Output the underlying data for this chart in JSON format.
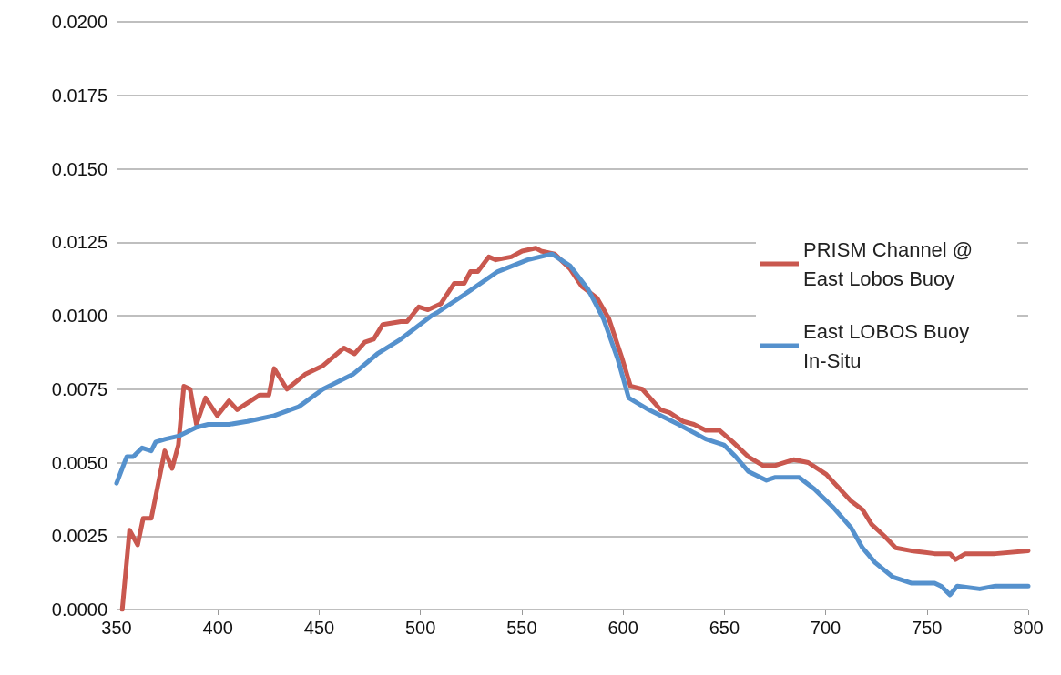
{
  "chart_data": {
    "type": "line",
    "xlim": [
      350,
      800
    ],
    "xticks": [
      350,
      400,
      450,
      500,
      550,
      600,
      650,
      700,
      750,
      800
    ],
    "ylim": [
      0,
      0.02
    ],
    "yticks": [
      {
        "value": 0,
        "label": "0.0000"
      },
      {
        "value": 0.0025,
        "label": "0.0025"
      },
      {
        "value": 0.005,
        "label": "0.0050"
      },
      {
        "value": 0.0075,
        "label": "0.0075"
      },
      {
        "value": 0.01,
        "label": "0.0100"
      },
      {
        "value": 0.0125,
        "label": "0.0125"
      },
      {
        "value": 0.015,
        "label": "0.0150"
      },
      {
        "value": 0.0175,
        "label": "0.0175"
      },
      {
        "value": 0.02,
        "label": "0.0200"
      }
    ],
    "grid": "y",
    "legend": "right",
    "marker": "none",
    "line_style": "solid",
    "series": [
      {
        "name": "PRISM Channel @ East Lobos Buoy",
        "color": "#c9584f",
        "x": [
          352.8,
          356.4,
          360.4,
          363.1,
          367.1,
          373.8,
          377.4,
          380.5,
          383.2,
          386.3,
          389.4,
          393.9,
          399.7,
          405.5,
          409.5,
          420.7,
          425.2,
          427.8,
          434.1,
          443,
          451.9,
          462.2,
          467.5,
          472.5,
          476.9,
          481.4,
          490.3,
          493.4,
          499.2,
          503.7,
          510,
          516.7,
          521.6,
          524.7,
          528.3,
          533.7,
          537.2,
          544.8,
          550.2,
          556.9,
          559.5,
          566.2,
          573.8,
          579.6,
          587.2,
          593,
          599.3,
          603.7,
          609.5,
          618.5,
          623,
          629.7,
          635,
          640.8,
          647.5,
          654.2,
          661.8,
          669,
          675.2,
          684.2,
          691.4,
          700.3,
          712.4,
          718.2,
          722.7,
          729,
          734.6,
          742.2,
          753.8,
          761.4,
          764.1,
          769,
          783.8,
          800
        ],
        "values": [
          0,
          0.0027,
          0.0022,
          0.0031,
          0.0031,
          0.0054,
          0.0048,
          0.0056,
          0.0076,
          0.0075,
          0.0063,
          0.0072,
          0.0066,
          0.0071,
          0.0068,
          0.0073,
          0.0073,
          0.0082,
          0.0075,
          0.008,
          0.0083,
          0.0089,
          0.0087,
          0.0091,
          0.0092,
          0.0097,
          0.0098,
          0.0098,
          0.0103,
          0.0102,
          0.0104,
          0.0111,
          0.0111,
          0.0115,
          0.0115,
          0.012,
          0.0119,
          0.012,
          0.0122,
          0.0123,
          0.0122,
          0.0121,
          0.0116,
          0.011,
          0.0106,
          0.0099,
          0.0086,
          0.0076,
          0.0075,
          0.0068,
          0.0067,
          0.0064,
          0.0063,
          0.0061,
          0.0061,
          0.0057,
          0.0052,
          0.0049,
          0.0049,
          0.0051,
          0.005,
          0.0046,
          0.0037,
          0.0034,
          0.0029,
          0.0025,
          0.0021,
          0.002,
          0.0019,
          0.0019,
          0.0017,
          0.0019,
          0.0019,
          0.002
        ]
      },
      {
        "name": "East LOBOS Buoy In-Situ",
        "color": "#5591cd",
        "x": [
          350,
          355,
          358.2,
          362.6,
          367.1,
          369.3,
          374.2,
          380.5,
          389.4,
          395.2,
          405.5,
          414.5,
          427.8,
          439.9,
          451.9,
          466.6,
          478.7,
          490.3,
          505.5,
          508.2,
          523.4,
          538.1,
          552.9,
          564.9,
          573.8,
          582.7,
          590.3,
          597.5,
          602.8,
          612.6,
          627.4,
          640.8,
          649.8,
          655.6,
          661.8,
          670.8,
          675.2,
          686.9,
          694.4,
          703.4,
          712.4,
          718.2,
          724.4,
          733.3,
          742.2,
          753.8,
          756.9,
          761.4,
          765,
          776.1,
          783.8,
          800
        ],
        "values": [
          0.0043,
          0.0052,
          0.0052,
          0.0055,
          0.0054,
          0.0057,
          0.0058,
          0.0059,
          0.0062,
          0.0063,
          0.0063,
          0.0064,
          0.0066,
          0.0069,
          0.0075,
          0.008,
          0.0087,
          0.0092,
          0.01,
          0.0101,
          0.0108,
          0.0115,
          0.0119,
          0.0121,
          0.0117,
          0.0109,
          0.0099,
          0.0085,
          0.0072,
          0.0068,
          0.0063,
          0.0058,
          0.0056,
          0.0052,
          0.0047,
          0.0044,
          0.0045,
          0.0045,
          0.0041,
          0.0035,
          0.0028,
          0.0021,
          0.0016,
          0.0011,
          0.0009,
          0.0009,
          0.0008,
          0.0005,
          0.0008,
          0.0007,
          0.0008,
          0.0008
        ]
      }
    ]
  }
}
